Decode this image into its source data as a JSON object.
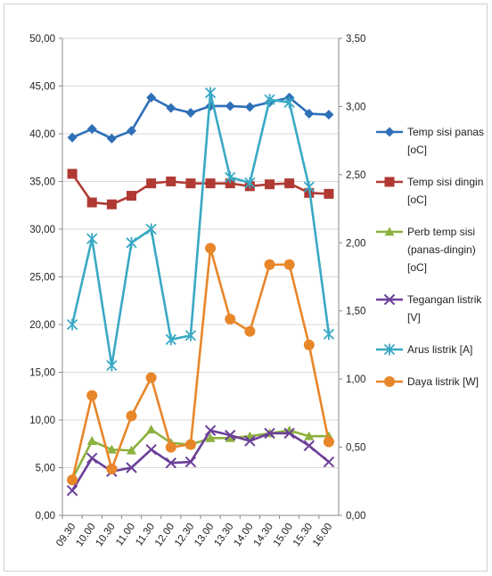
{
  "chart_data": {
    "type": "line",
    "categories": [
      "09.30",
      "10.00",
      "10.30",
      "11.00",
      "11.30",
      "12.00",
      "12.30",
      "13.00",
      "13.30",
      "14.00",
      "14.30",
      "15.00",
      "15.30",
      "16.00"
    ],
    "y_left": {
      "ylim": [
        0,
        50
      ],
      "ticks": [
        "0,00",
        "5,00",
        "10,00",
        "15,00",
        "20,00",
        "25,00",
        "30,00",
        "35,00",
        "40,00",
        "45,00",
        "50,00"
      ]
    },
    "y_right": {
      "ylim": [
        0,
        3.5
      ],
      "ticks": [
        "0,00",
        "0,50",
        "1,00",
        "1,50",
        "2,00",
        "2,50",
        "3,00",
        "3,50"
      ]
    },
    "grid": "horizontal",
    "legend_position": "right",
    "series": [
      {
        "name": "Temp sisi panas [oC]",
        "axis": "left",
        "color": "#2E6FB8",
        "marker": "diamond",
        "values": [
          39.6,
          40.5,
          39.5,
          40.3,
          43.8,
          42.7,
          42.2,
          42.9,
          42.9,
          42.8,
          43.3,
          43.8,
          42.1,
          42.0
        ]
      },
      {
        "name": "Temp sisi dingin [oC]",
        "axis": "left",
        "color": "#B03A33",
        "marker": "square",
        "values": [
          35.8,
          32.8,
          32.6,
          33.5,
          34.8,
          35.0,
          34.8,
          34.8,
          34.8,
          34.5,
          34.7,
          34.8,
          33.8,
          33.7
        ]
      },
      {
        "name": "Perb temp sisi (panas-dingin) [oC]",
        "axis": "left",
        "color": "#8DB13F",
        "marker": "triangle",
        "values": [
          3.8,
          7.8,
          6.9,
          6.8,
          9.0,
          7.6,
          7.4,
          8.1,
          8.1,
          8.3,
          8.6,
          8.9,
          8.3,
          8.3
        ]
      },
      {
        "name": "Tegangan listrik [V]",
        "axis": "left",
        "color": "#6B3F99",
        "marker": "x",
        "values": [
          2.6,
          6.0,
          4.6,
          5.0,
          6.9,
          5.5,
          5.6,
          8.9,
          8.4,
          7.8,
          8.6,
          8.6,
          7.3,
          5.6
        ]
      },
      {
        "name": "Arus listrik [A]",
        "axis": "right",
        "color": "#39A9C4",
        "marker": "star",
        "values": [
          1.4,
          2.03,
          1.1,
          2.0,
          2.1,
          1.29,
          1.32,
          3.1,
          2.48,
          2.44,
          3.05,
          3.03,
          2.41,
          1.33
        ]
      },
      {
        "name": "Daya listrik [W]",
        "axis": "right",
        "color": "#E8862A",
        "marker": "circle",
        "values": [
          0.26,
          0.88,
          0.34,
          0.73,
          1.01,
          0.5,
          0.52,
          1.96,
          1.44,
          1.35,
          1.84,
          1.84,
          1.25,
          0.54
        ]
      }
    ]
  }
}
